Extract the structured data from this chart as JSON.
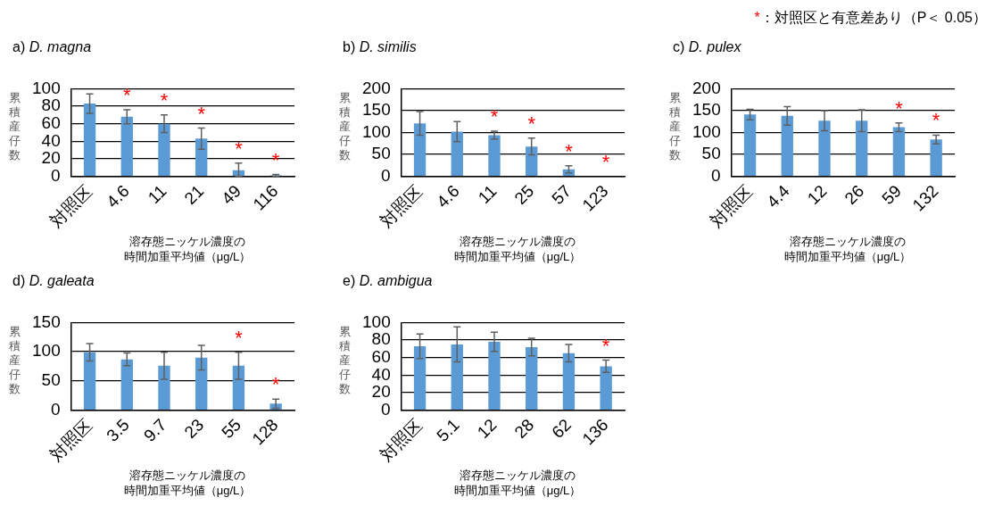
{
  "chart_data": [
    {
      "type": "bar",
      "title": "a) D. magna",
      "ylabel": "累積産仔数",
      "xlabel": "溶存態ニッケル濃度の時間加重平均値（μg/L）",
      "categories": [
        "対照区",
        "4.6",
        "11",
        "21",
        "49",
        "116"
      ],
      "color": "#5b9bd5",
      "values": [
        83,
        68,
        60,
        43,
        7,
        1
      ],
      "value_labels": [
        null,
        "*",
        "*",
        "*",
        "*",
        "*"
      ],
      "errors": [
        11,
        8,
        10,
        12,
        [
          0,
          15
        ],
        [
          0,
          2
        ]
      ],
      "ylim": [
        0,
        100
      ],
      "yticks": [
        0,
        20,
        40,
        60,
        80,
        100
      ],
      "grid": "y"
    },
    {
      "type": "bar",
      "title": "b) D. similis",
      "ylabel": "累積産仔数",
      "xlabel": "溶存態ニッケル濃度の時間加重平均値（μg/L）",
      "categories": [
        "対照区",
        "4.6",
        "11",
        "25",
        "57",
        "123"
      ],
      "color": "#5b9bd5",
      "values": [
        121,
        102,
        94,
        68,
        16,
        0
      ],
      "value_labels": [
        null,
        null,
        "*",
        "*",
        "*",
        "*"
      ],
      "errors": [
        27,
        23,
        9,
        19,
        8,
        null
      ],
      "ylim": [
        0,
        200
      ],
      "yticks": [
        0,
        50,
        100,
        150,
        200
      ],
      "grid": "y"
    },
    {
      "type": "bar",
      "title": "c) D. pulex",
      "ylabel": "累積産仔数",
      "xlabel": "溶存態ニッケル濃度の時間加重平均値（μg/L）",
      "categories": [
        "対照区",
        "4.4",
        "12",
        "26",
        "59",
        "132"
      ],
      "color": "#5b9bd5",
      "values": [
        141,
        138,
        127,
        127,
        112,
        84
      ],
      "value_labels": [
        null,
        null,
        null,
        null,
        "*",
        "*"
      ],
      "errors": [
        12,
        21,
        23,
        25,
        10,
        10
      ],
      "ylim": [
        0,
        200
      ],
      "yticks": [
        0,
        50,
        100,
        150,
        200
      ],
      "grid": "y",
      "annotations": [
        "*：対照区と有意差あり（P＜ 0.05）"
      ]
    },
    {
      "type": "bar",
      "title": "d) D. galeata",
      "ylabel": "累積産仔数",
      "xlabel": "溶存態ニッケル濃度の時間加重平均値（μg/L）",
      "categories": [
        "対照区",
        "3.5",
        "9.7",
        "23",
        "55",
        "128"
      ],
      "color": "#5b9bd5",
      "values": [
        99,
        87,
        76,
        90,
        76,
        11
      ],
      "value_labels": [
        null,
        null,
        null,
        null,
        "*",
        "*"
      ],
      "errors": [
        15,
        11,
        23,
        21,
        23,
        8
      ],
      "ylim": [
        0,
        150
      ],
      "yticks": [
        0,
        50,
        100,
        150
      ],
      "grid": "y"
    },
    {
      "type": "bar",
      "title": "e) D. ambigua",
      "ylabel": "累積産仔数",
      "xlabel": "溶存態ニッケル濃度の時間加重平均値（μg/L）",
      "categories": [
        "対照区",
        "5.1",
        "12",
        "28",
        "62",
        "136"
      ],
      "color": "#5b9bd5",
      "values": [
        73,
        75,
        78,
        72,
        65,
        50
      ],
      "value_labels": [
        null,
        null,
        null,
        null,
        null,
        "*"
      ],
      "errors": [
        14,
        20,
        11,
        10,
        10,
        7
      ],
      "ylim": [
        0,
        100
      ],
      "yticks": [
        0,
        20,
        40,
        60,
        80,
        100
      ],
      "grid": "y"
    }
  ]
}
